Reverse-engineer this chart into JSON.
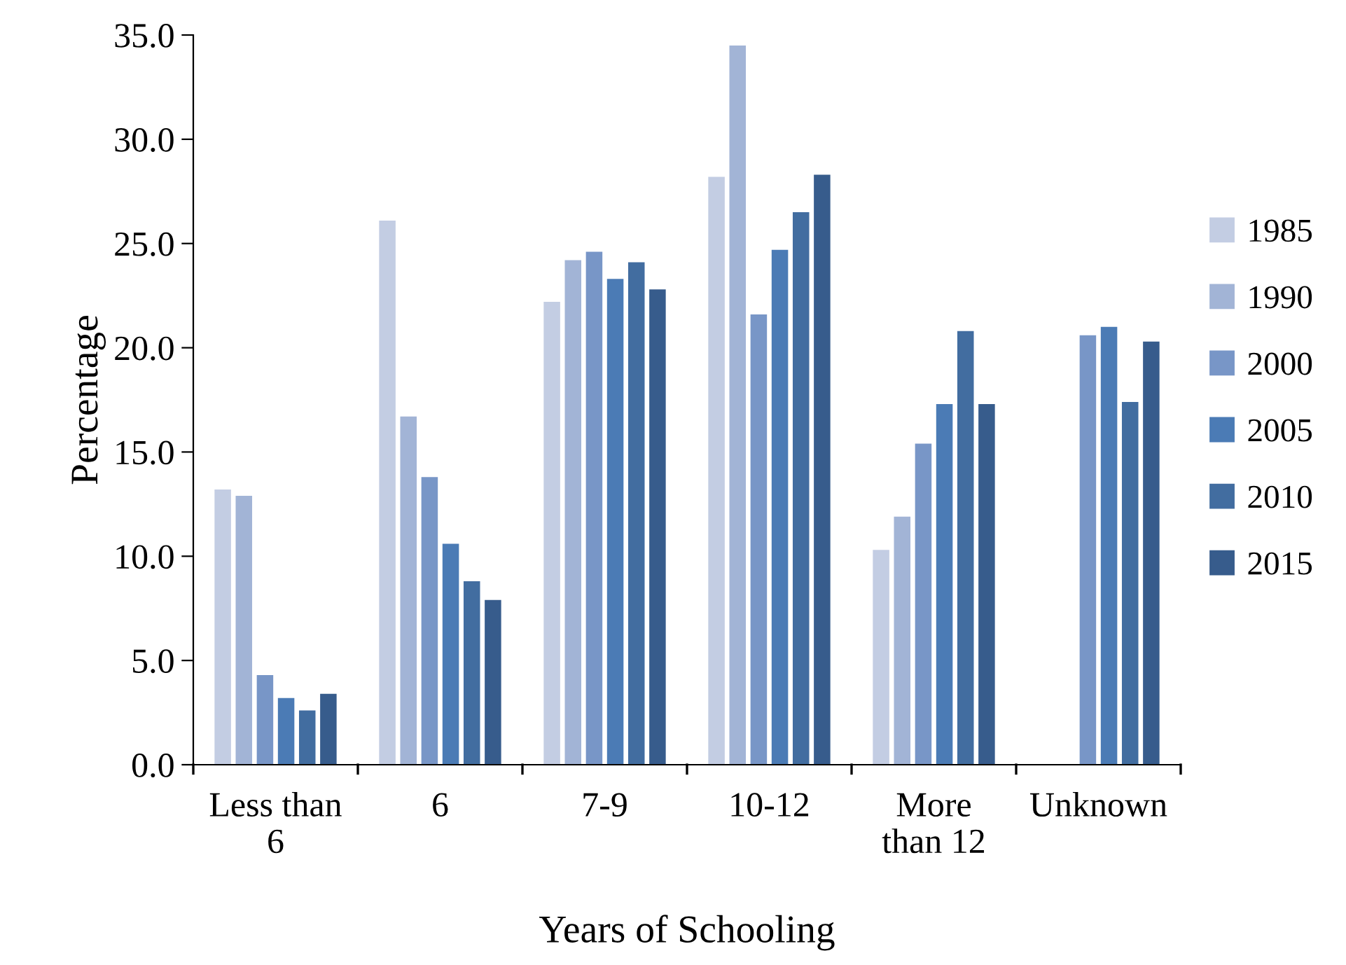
{
  "chart_data": {
    "type": "bar",
    "xlabel": "Years of Schooling",
    "ylabel": "Percentage",
    "categories": [
      "Less than\n6",
      "6",
      "7-9",
      "10-12",
      "More\nthan 12",
      "Unknown"
    ],
    "ylim": [
      0,
      35
    ],
    "yticks": [
      {
        "value": 0,
        "label": "0.0"
      },
      {
        "value": 5,
        "label": "5.0"
      },
      {
        "value": 10,
        "label": "10.0"
      },
      {
        "value": 15,
        "label": "15.0"
      },
      {
        "value": 20,
        "label": "20.0"
      },
      {
        "value": 25,
        "label": "25.0"
      },
      {
        "value": 30,
        "label": "30.0"
      },
      {
        "value": 35,
        "label": "35.0"
      }
    ],
    "grid": false,
    "legend": "right",
    "series": [
      {
        "name": "1985",
        "color": "#c3cde3",
        "values": [
          13.2,
          26.1,
          22.2,
          28.2,
          10.3,
          null
        ]
      },
      {
        "name": "1990",
        "color": "#a2b4d6",
        "values": [
          12.9,
          16.7,
          24.2,
          34.5,
          11.9,
          null
        ]
      },
      {
        "name": "2000",
        "color": "#7896c7",
        "values": [
          4.3,
          13.8,
          24.6,
          21.6,
          15.4,
          20.6
        ]
      },
      {
        "name": "2005",
        "color": "#4b7bb5",
        "values": [
          3.2,
          10.6,
          23.3,
          24.7,
          17.3,
          21.0
        ]
      },
      {
        "name": "2010",
        "color": "#426da0",
        "values": [
          2.6,
          8.8,
          24.1,
          26.5,
          20.8,
          17.4
        ]
      },
      {
        "name": "2015",
        "color": "#375c8c",
        "values": [
          3.4,
          7.9,
          22.8,
          28.3,
          17.3,
          20.3
        ]
      }
    ]
  }
}
